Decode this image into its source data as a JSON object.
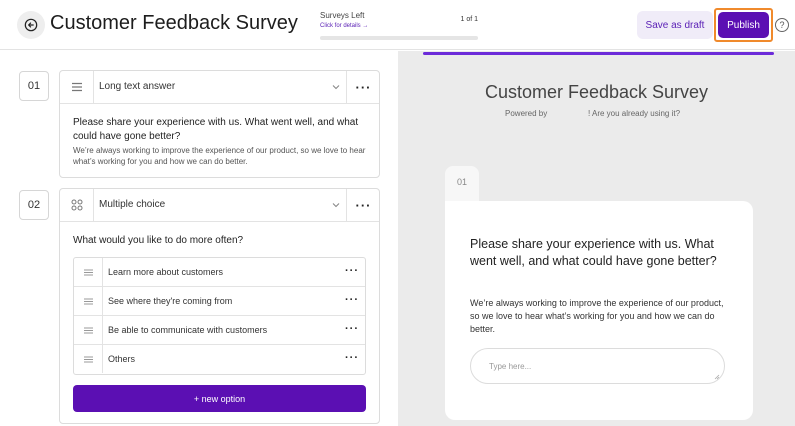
{
  "header": {
    "title": "Customer Feedback Survey",
    "surveys_left_label": "Surveys Left",
    "details_link": "Click for details →",
    "surveys_count": "1 of 1",
    "surveys_used_fraction": 0,
    "save_label": "Save as draft",
    "publish_label": "Publish",
    "help_glyph": "?",
    "accent_color": "#5b0fb3",
    "highlight_color": "#f08a2c"
  },
  "questions": [
    {
      "number": "01",
      "type_label": "Long text answer",
      "type_icon": "text-lines-icon",
      "title": "Please share your experience with us. What went well, and what could have gone better?",
      "description": "We’re always working to improve the experience of our product, so we love to hear what’s working for you and how we can do better."
    },
    {
      "number": "02",
      "type_label": "Multiple choice",
      "type_icon": "grid-icon",
      "title": "What would you like to do more often?",
      "options": [
        "Learn more about customers",
        "See where they're coming from",
        "Be able to communicate with customers",
        "Others"
      ],
      "new_option_label": "+ new option"
    }
  ],
  "preview": {
    "title": "Customer Feedback Survey",
    "powered_by": "Powered by",
    "using_prompt": "! Are you already using it?",
    "tab_number": "01",
    "question": "Please share your experience with us. What went well, and what could have gone better?",
    "description": "We’re always working to improve the experience of our product, so we love to hear what’s working for you and how we can do better.",
    "input_placeholder": "Type here..."
  }
}
